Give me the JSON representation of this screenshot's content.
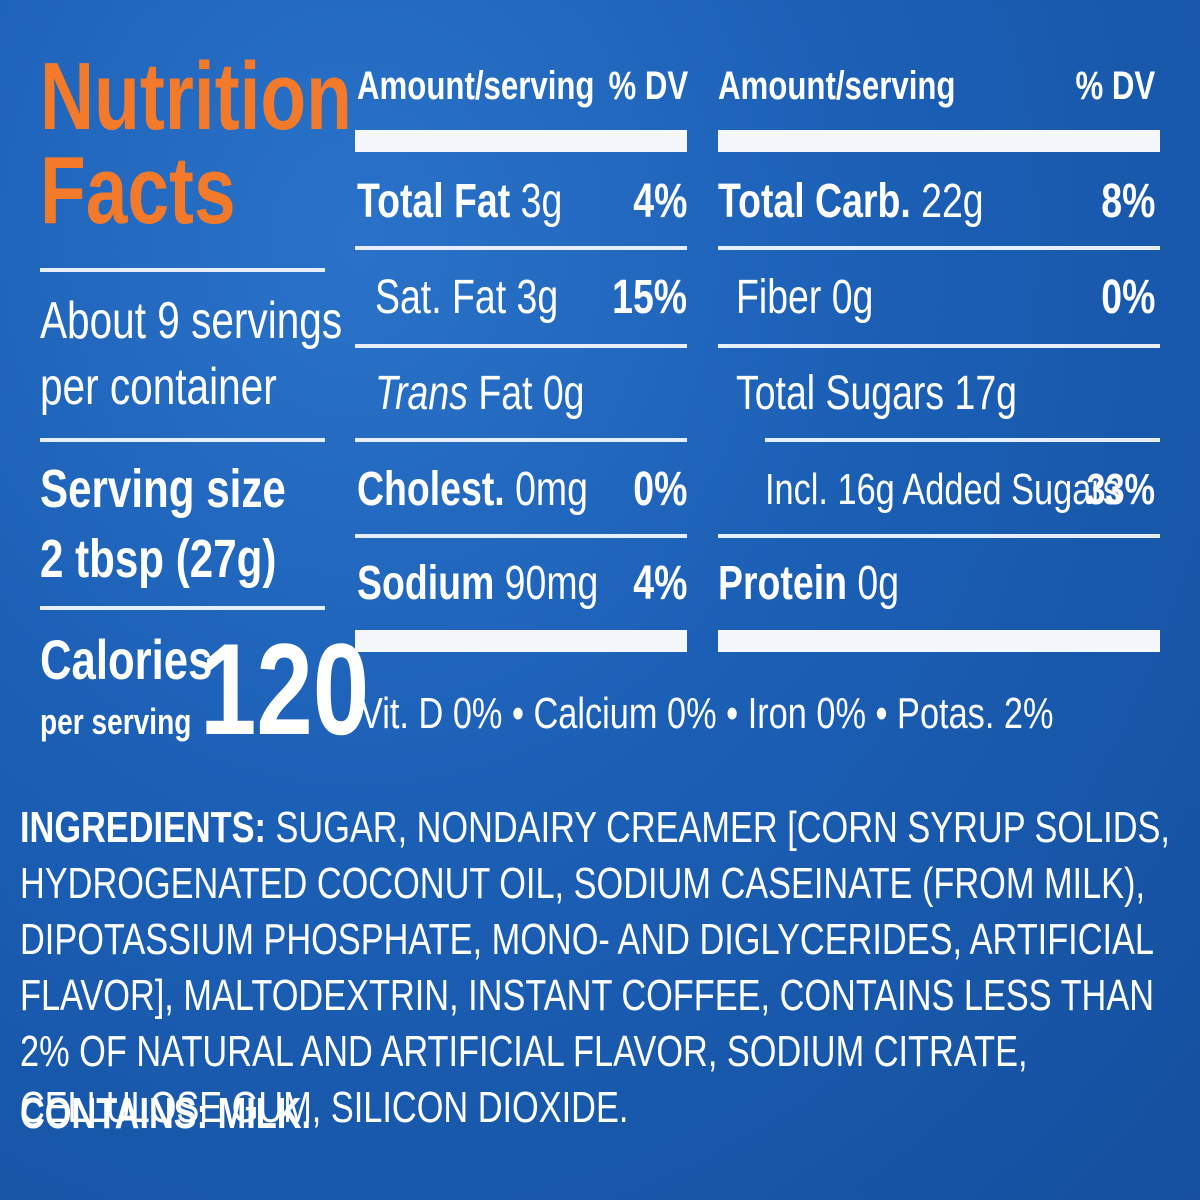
{
  "title": {
    "line1": "Nutrition",
    "line2": "Facts"
  },
  "servings": {
    "line1": "About 9 servings",
    "line2": "per container"
  },
  "serving_size": {
    "label": "Serving size",
    "value": "2 tbsp (27g)"
  },
  "calories": {
    "label": "Calories",
    "sub": "per serving",
    "value": "120"
  },
  "header": {
    "amount": "Amount/serving",
    "dv": "% DV"
  },
  "left_rows": [
    {
      "name": "Total Fat",
      "amount": " 3g",
      "dv": "4%"
    },
    {
      "name": "Sat. Fat 3g",
      "dv": "15%"
    },
    {
      "name_italic": "Trans",
      "name": " Fat 0g",
      "dv": ""
    },
    {
      "name": "Cholest.",
      "amount": " 0mg",
      "dv": "0%"
    },
    {
      "name": "Sodium",
      "amount": " 90mg",
      "dv": "4%"
    }
  ],
  "right_rows": [
    {
      "name": "Total Carb.",
      "amount": " 22g",
      "dv": "8%"
    },
    {
      "name": "Fiber 0g",
      "dv": "0%"
    },
    {
      "name": "Total Sugars 17g",
      "dv": ""
    },
    {
      "name": "Incl. 16g Added Sugars",
      "dv": "33%"
    },
    {
      "name": "Protein",
      "amount": " 0g",
      "dv": ""
    }
  ],
  "vitamins": "Vit. D 0% • Calcium 0% • Iron 0% • Potas. 2%",
  "ingredients": {
    "label": "INGREDIENTS:",
    "text": " SUGAR, NONDAIRY CREAMER [CORN SYRUP SOLIDS, HYDROGENATED COCONUT OIL, SODIUM CASEINATE (FROM MILK), DIPOTASSIUM PHOSPHATE, MONO- AND DIGLYCERIDES, ARTIFICIAL FLAVOR], MALTODEXTRIN, INSTANT COFFEE, CONTAINS LESS THAN 2% OF NATURAL AND ARTIFICIAL FLAVOR, SODIUM CITRATE, CELLULOSE GUM, SILICON DIOXIDE."
  },
  "contains": {
    "label": "CONTAINS:",
    "text": " MILK."
  },
  "colors": {
    "background": "#1b5fb5",
    "title": "#f27a2a",
    "text": "#ffffff"
  }
}
